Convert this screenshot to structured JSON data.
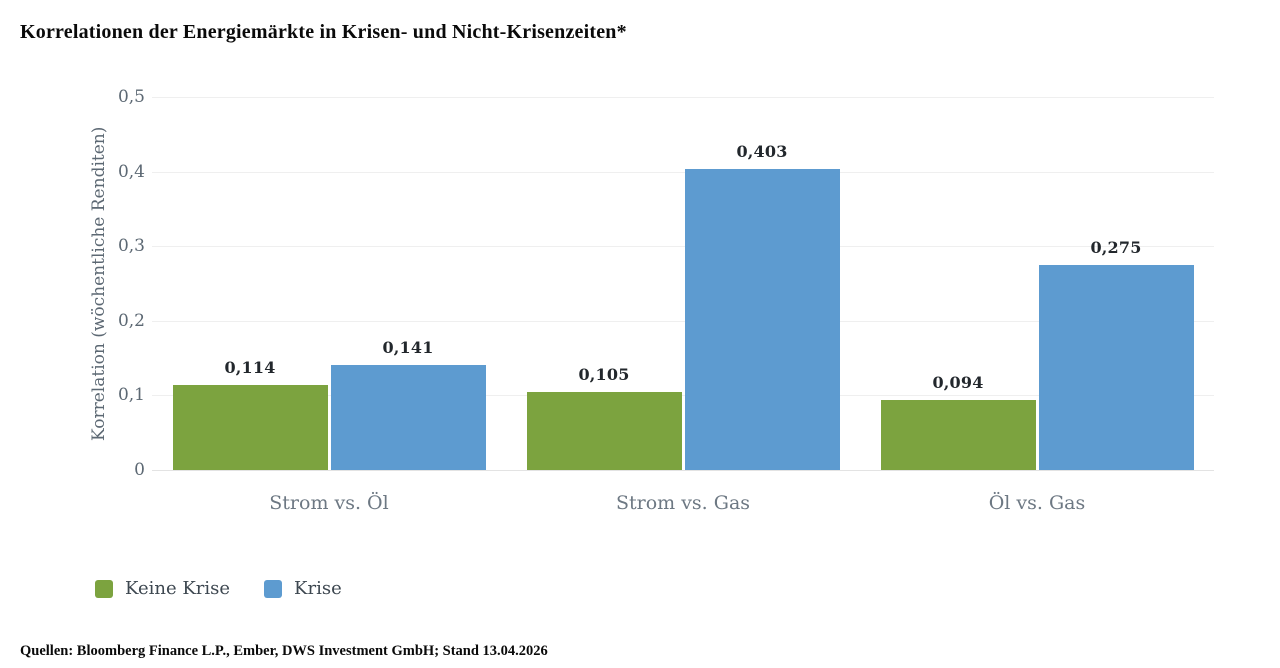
{
  "title": "Korrelationen der Energiemärkte in Krisen- und Nicht-Krisenzeiten*",
  "source": "Quellen: Bloomberg Finance L.P., Ember, DWS Investment GmbH; Stand 13.04.2026",
  "chart_data": {
    "type": "bar",
    "title": "Korrelationen der Energiemärkte in Krisen- und Nicht-Krisenzeiten*",
    "xlabel": "",
    "ylabel": "Korrelation (wöchentliche Renditen)",
    "categories": [
      "Strom vs. Öl",
      "Strom vs. Gas",
      "Öl vs. Gas"
    ],
    "series": [
      {
        "name": "Keine Krise",
        "color": "#7CA33F",
        "values": [
          0.114,
          0.105,
          0.094
        ],
        "labels": [
          "0,114",
          "0,105",
          "0,094"
        ]
      },
      {
        "name": "Krise",
        "color": "#5D9BD0",
        "values": [
          0.141,
          0.403,
          0.275
        ],
        "labels": [
          "0,141",
          "0,403",
          "0,275"
        ]
      }
    ],
    "ylim": [
      0,
      0.5
    ],
    "yticks": [
      "0,5",
      "0,4",
      "0,3",
      "0,2",
      "0,1",
      "0"
    ],
    "grid": true,
    "grid_color": "#efefef",
    "legend_position": "bottom-left"
  }
}
